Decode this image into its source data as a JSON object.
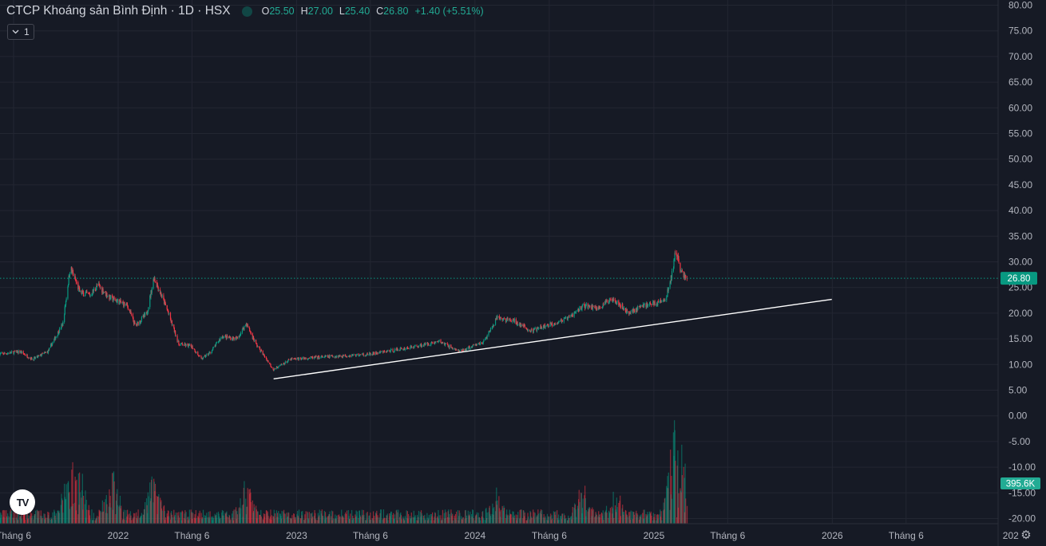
{
  "header": {
    "title": "CTCP Khoáng sản Bình Định · 1D · HSX",
    "o_label": "O",
    "o_value": "25.50",
    "h_label": "H",
    "h_value": "27.00",
    "l_label": "L",
    "l_value": "25.40",
    "c_label": "C",
    "c_value": "26.80",
    "change": "+1.40 (+5.51%)",
    "status_color": "#089981"
  },
  "indicator_toggle": {
    "count": "1",
    "icon": "chevron-down-icon"
  },
  "logo_text": "TV",
  "settings_icon": "gear-icon",
  "colors": {
    "up": "#089981",
    "down": "#f23645",
    "background": "#161a25",
    "grid": "#232632",
    "trendline": "#ffffff",
    "last_price_badge": "#089981",
    "volume_badge": "#22ab94"
  },
  "chart_data": {
    "type": "candlestick",
    "price_axis": {
      "ticks": [
        "80.00",
        "75.00",
        "70.00",
        "65.00",
        "60.00",
        "55.00",
        "50.00",
        "45.00",
        "40.00",
        "35.00",
        "30.00",
        "25.00",
        "20.00",
        "15.00",
        "10.00",
        "5.00",
        "0.00",
        "-5.00",
        "-10.00",
        "-15.00",
        "-20.00"
      ],
      "range": [
        -20,
        80
      ]
    },
    "time_axis": {
      "labels": [
        "Tháng 6",
        "2022",
        "Tháng 6",
        "2023",
        "Tháng 6",
        "2024",
        "Tháng 6",
        "2025",
        "Tháng 6",
        "2026",
        "Tháng 6",
        "202"
      ],
      "dates": [
        "2021-06-01",
        "2022-01-01",
        "2022-06-01",
        "2023-01-01",
        "2023-06-01",
        "2024-01-01",
        "2024-06-01",
        "2025-01-01",
        "2025-06-01",
        "2026-01-01",
        "2026-06-01",
        "2027-01-01"
      ]
    },
    "last_price": "26.80",
    "last_volume": "395.6K",
    "trendline": {
      "start": {
        "date": "2022-11-15",
        "price": 7.2
      },
      "end": {
        "date": "2025-12-31",
        "price": 22.7
      }
    },
    "price_path": [
      {
        "date": "2021-05-01",
        "price": 12
      },
      {
        "date": "2021-06-15",
        "price": 12.5
      },
      {
        "date": "2021-07-10",
        "price": 11
      },
      {
        "date": "2021-08-10",
        "price": 12.5
      },
      {
        "date": "2021-09-10",
        "price": 18
      },
      {
        "date": "2021-09-25",
        "price": 29
      },
      {
        "date": "2021-10-15",
        "price": 24
      },
      {
        "date": "2021-11-05",
        "price": 23.5
      },
      {
        "date": "2021-11-20",
        "price": 25.5
      },
      {
        "date": "2021-12-15",
        "price": 23
      },
      {
        "date": "2022-01-20",
        "price": 21.5
      },
      {
        "date": "2022-02-05",
        "price": 17.5
      },
      {
        "date": "2022-03-01",
        "price": 20
      },
      {
        "date": "2022-03-15",
        "price": 27
      },
      {
        "date": "2022-04-10",
        "price": 21
      },
      {
        "date": "2022-05-05",
        "price": 14
      },
      {
        "date": "2022-06-01",
        "price": 13.5
      },
      {
        "date": "2022-06-20",
        "price": 11
      },
      {
        "date": "2022-07-10",
        "price": 12.5
      },
      {
        "date": "2022-08-01",
        "price": 15.5
      },
      {
        "date": "2022-09-01",
        "price": 15
      },
      {
        "date": "2022-09-20",
        "price": 18
      },
      {
        "date": "2022-10-10",
        "price": 14
      },
      {
        "date": "2022-11-15",
        "price": 9
      },
      {
        "date": "2022-12-20",
        "price": 11
      },
      {
        "date": "2023-03-01",
        "price": 11.5
      },
      {
        "date": "2023-06-01",
        "price": 12
      },
      {
        "date": "2023-09-01",
        "price": 13.5
      },
      {
        "date": "2023-10-20",
        "price": 14.5
      },
      {
        "date": "2023-12-01",
        "price": 12.5
      },
      {
        "date": "2024-01-20",
        "price": 14.5
      },
      {
        "date": "2024-02-15",
        "price": 19
      },
      {
        "date": "2024-03-20",
        "price": 18.5
      },
      {
        "date": "2024-04-25",
        "price": 16.5
      },
      {
        "date": "2024-06-10",
        "price": 18
      },
      {
        "date": "2024-07-10",
        "price": 19
      },
      {
        "date": "2024-08-10",
        "price": 21.5
      },
      {
        "date": "2024-09-10",
        "price": 21
      },
      {
        "date": "2024-10-10",
        "price": 23
      },
      {
        "date": "2024-11-10",
        "price": 20
      },
      {
        "date": "2024-12-10",
        "price": 21.5
      },
      {
        "date": "2025-01-05",
        "price": 22
      },
      {
        "date": "2025-01-25",
        "price": 22.5
      },
      {
        "date": "2025-02-08",
        "price": 28
      },
      {
        "date": "2025-02-15",
        "price": 32.5
      },
      {
        "date": "2025-02-25",
        "price": 28
      },
      {
        "date": "2025-03-10",
        "price": 26.8
      }
    ],
    "volume_spikes": [
      {
        "date": "2021-09-25",
        "volume": 1.0
      },
      {
        "date": "2021-10-10",
        "volume": 0.95
      },
      {
        "date": "2021-12-20",
        "volume": 0.8
      },
      {
        "date": "2022-03-15",
        "volume": 0.7
      },
      {
        "date": "2022-09-20",
        "volume": 0.55
      },
      {
        "date": "2024-02-15",
        "volume": 0.4
      },
      {
        "date": "2024-08-10",
        "volume": 0.5
      },
      {
        "date": "2024-10-15",
        "volume": 0.35
      },
      {
        "date": "2025-02-10",
        "volume": 1.6
      },
      {
        "date": "2025-02-20",
        "volume": 2.0
      }
    ]
  }
}
